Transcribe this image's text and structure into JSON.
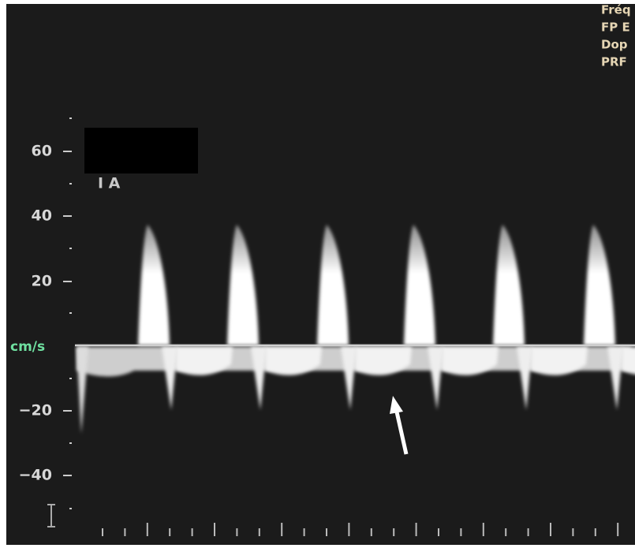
{
  "velocity_scale": {
    "labels": [
      "60",
      "40",
      "20",
      "−20",
      "−40"
    ],
    "unit": "cm/s"
  },
  "overlay_label": "I A",
  "settings_panel": [
    "Fréq",
    "FP E",
    "Dop",
    "PRF"
  ]
}
